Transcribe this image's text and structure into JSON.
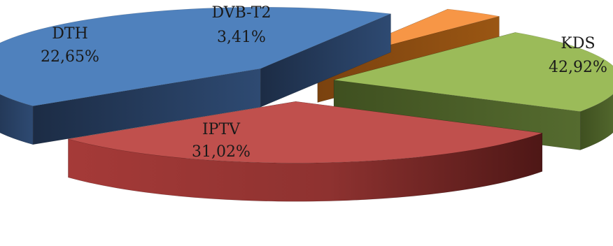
{
  "chart_data": {
    "type": "pie",
    "style": "3d-exploded",
    "title": "",
    "categories": [
      "KDS",
      "IPTV",
      "DTH",
      "DVB-T2"
    ],
    "values": [
      42.92,
      31.02,
      22.65,
      3.41
    ],
    "value_labels": [
      "42,92%",
      "31,02%",
      "22,65%",
      "3,41%"
    ],
    "colors": {
      "KDS": "#4F81BD",
      "IPTV": "#C0504D",
      "DTH": "#9BBB59",
      "DVB-T2": "#F79646"
    },
    "legend": "none"
  }
}
